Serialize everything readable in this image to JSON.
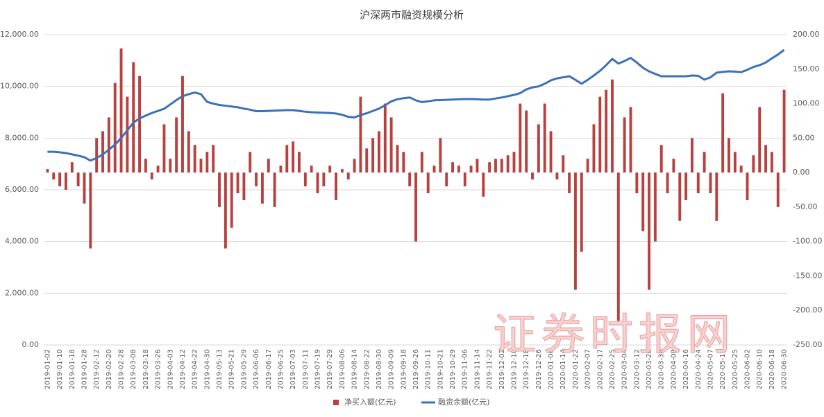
{
  "chart_data": {
    "type": "bar-line",
    "title": "沪深两市融资规模分析",
    "watermark": "证券时报网",
    "categories": [
      "2019-01-02",
      null,
      "2019-01-10",
      null,
      "2019-01-18",
      null,
      "2019-01-28",
      null,
      "2019-02-12",
      null,
      "2019-02-20",
      null,
      "2019-02-28",
      null,
      "2019-03-08",
      null,
      "2019-03-18",
      null,
      "2019-03-26",
      null,
      "2019-04-03",
      null,
      "2019-04-12",
      null,
      "2019-04-22",
      null,
      "2019-04-30",
      null,
      "2019-05-13",
      null,
      "2019-05-21",
      null,
      "2019-05-29",
      null,
      "2019-06-06",
      null,
      "2019-06-17",
      null,
      "2019-06-25",
      null,
      "2019-07-03",
      null,
      "2019-07-11",
      null,
      "2019-07-19",
      null,
      "2019-07-29",
      null,
      "2019-08-06",
      null,
      "2019-08-14",
      null,
      "2019-08-22",
      null,
      "2019-08-30",
      null,
      "2019-09-09",
      null,
      "2019-09-18",
      null,
      "2019-09-26",
      null,
      "2019-10-11",
      null,
      "2019-10-21",
      null,
      "2019-10-29",
      null,
      "2019-11-06",
      null,
      "2019-11-14",
      null,
      "2019-11-22",
      null,
      "2019-12-02",
      null,
      "2019-12-10",
      null,
      "2019-12-18",
      null,
      "2019-12-26",
      null,
      "2020-01-06",
      null,
      "2020-01-14",
      null,
      "2020-01-22",
      null,
      "2020-02-07",
      null,
      "2020-02-17",
      null,
      "2020-02-25",
      null,
      "2020-03-04",
      null,
      "2020-03-12",
      null,
      "2020-03-20",
      null,
      "2020-03-30",
      null,
      "2020-04-08",
      null,
      "2020-04-16",
      null,
      "2020-04-24",
      null,
      "2020-05-07",
      null,
      "2020-05-15",
      null,
      "2020-05-25",
      null,
      "2020-06-02",
      null,
      "2020-06-10",
      null,
      "2020-06-18",
      null,
      "2020-06-30"
    ],
    "series": [
      {
        "name": "净买入额(亿元)",
        "kind": "bar",
        "axis": "y2",
        "color": "#b8403e",
        "values": [
          5,
          -10,
          -20,
          -25,
          15,
          -20,
          -45,
          -110,
          50,
          60,
          80,
          130,
          180,
          110,
          160,
          140,
          20,
          -10,
          10,
          70,
          20,
          80,
          140,
          60,
          40,
          20,
          30,
          40,
          -50,
          -110,
          -80,
          -30,
          -40,
          30,
          -20,
          -45,
          20,
          -50,
          10,
          40,
          45,
          30,
          -20,
          10,
          -30,
          -20,
          10,
          -40,
          5,
          -10,
          20,
          110,
          35,
          50,
          60,
          100,
          80,
          40,
          30,
          -20,
          -100,
          30,
          -30,
          10,
          50,
          -20,
          15,
          10,
          -20,
          10,
          20,
          -35,
          15,
          20,
          20,
          25,
          30,
          100,
          90,
          -10,
          70,
          100,
          60,
          -10,
          25,
          -30,
          -170,
          -115,
          20,
          70,
          110,
          120,
          135,
          -215,
          80,
          95,
          -30,
          -85,
          -170,
          -100,
          40,
          -30,
          20,
          -70,
          -40,
          50,
          -30,
          30,
          -30,
          -70,
          115,
          50,
          30,
          10,
          -40,
          25,
          95,
          40,
          30,
          -50,
          120
        ]
      },
      {
        "name": "融资余额(亿元)",
        "kind": "line",
        "color": "#3c70b8",
        "values": [
          7470,
          7470,
          7450,
          7420,
          7370,
          7320,
          7260,
          7130,
          7230,
          7370,
          7550,
          7750,
          8000,
          8300,
          8600,
          8760,
          8870,
          8970,
          9050,
          9130,
          9300,
          9470,
          9620,
          9700,
          9760,
          9700,
          9400,
          9330,
          9280,
          9250,
          9220,
          9190,
          9140,
          9100,
          9040,
          9040,
          9050,
          9060,
          9070,
          9080,
          9080,
          9050,
          9020,
          9000,
          8990,
          8980,
          8970,
          8950,
          8900,
          8820,
          8800,
          8890,
          8960,
          9050,
          9140,
          9270,
          9420,
          9500,
          9540,
          9570,
          9460,
          9390,
          9420,
          9460,
          9470,
          9480,
          9490,
          9500,
          9510,
          9510,
          9500,
          9490,
          9490,
          9530,
          9570,
          9620,
          9670,
          9740,
          9880,
          9960,
          10000,
          10100,
          10230,
          10310,
          10350,
          10390,
          10250,
          10100,
          10250,
          10420,
          10600,
          10820,
          11060,
          10880,
          10980,
          11100,
          10920,
          10720,
          10580,
          10480,
          10390,
          10390,
          10390,
          10390,
          10390,
          10420,
          10410,
          10260,
          10350,
          10530,
          10560,
          10580,
          10570,
          10550,
          10640,
          10750,
          10820,
          10920,
          11080,
          11230,
          11410
        ]
      }
    ],
    "ylim": [
      0,
      12000
    ],
    "yticks": [
      {
        "value": 0,
        "label": "0.00"
      },
      {
        "value": 2000,
        "label": "2,000.00"
      },
      {
        "value": 4000,
        "label": "4,000.00"
      },
      {
        "value": 6000,
        "label": "6,000.00"
      },
      {
        "value": 8000,
        "label": "8,000.00"
      },
      {
        "value": 10000,
        "label": "10,000.00"
      },
      {
        "value": 12000,
        "label": "12,000.00"
      }
    ],
    "y2lim": [
      -250,
      200
    ],
    "y2ticks": [
      {
        "value": -250,
        "label": "-250.00"
      },
      {
        "value": -200,
        "label": "-200.00"
      },
      {
        "value": -150,
        "label": "-150.00"
      },
      {
        "value": -100,
        "label": "-100.00"
      },
      {
        "value": -50,
        "label": "-50.00"
      },
      {
        "value": 0,
        "label": "0.00"
      },
      {
        "value": 50,
        "label": "50.00"
      },
      {
        "value": 100,
        "label": "100.00"
      },
      {
        "value": 150,
        "label": "150.00"
      },
      {
        "value": 200,
        "label": "200.00"
      }
    ],
    "grid": true,
    "legend": "bottom"
  }
}
